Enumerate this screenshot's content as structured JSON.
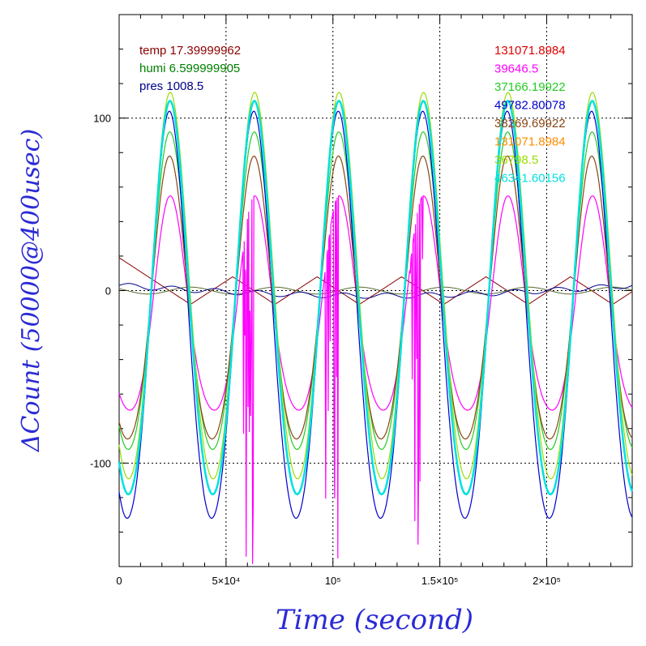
{
  "chart_data": {
    "type": "line",
    "xlabel": "Time (second)",
    "ylabel": "ΔCount (50000@400usec)",
    "xlim": [
      0,
      240000
    ],
    "ylim": [
      -160,
      160
    ],
    "grid": true,
    "x_ticks": [
      {
        "value": 0,
        "label": "0"
      },
      {
        "value": 50000,
        "label": "5×10⁴"
      },
      {
        "value": 100000,
        "label": "10⁵"
      },
      {
        "value": 150000,
        "label": "1.5×10⁵"
      },
      {
        "value": 200000,
        "label": "2×10⁵"
      }
    ],
    "y_ticks": [
      {
        "value": 100,
        "label": "100"
      },
      {
        "value": 0,
        "label": "0"
      },
      {
        "value": -100,
        "label": "-100"
      }
    ],
    "env_legend": [
      {
        "text": "temp 17.39999962",
        "color": "#8b0000"
      },
      {
        "text": "humi 6.599999905",
        "color": "#008000"
      },
      {
        "text": "pres 1008.5",
        "color": "#00008b"
      }
    ],
    "series": [
      {
        "name": "131071.8984",
        "color": "#e00000",
        "amp": 0,
        "phase": 0,
        "offset": 0,
        "noise": 0
      },
      {
        "name": "39646.5",
        "color": "#ff00ff",
        "amp": 62,
        "phase": 0.1,
        "offset": -15,
        "noise": 1
      },
      {
        "name": "37166.19922",
        "color": "#22cc22",
        "amp": 92,
        "phase": 0.05,
        "offset": -8,
        "noise": 0
      },
      {
        "name": "49782.80078",
        "color": "#0000cc",
        "amp": 118,
        "phase": 0.0,
        "offset": -22,
        "noise": 0
      },
      {
        "name": "38269.69922",
        "color": "#8b4513",
        "amp": 82,
        "phase": 0.02,
        "offset": -12,
        "noise": 0
      },
      {
        "name": "131071.8984",
        "color": "#ff8c00",
        "amp": 0,
        "phase": 0,
        "offset": 0,
        "noise": 0
      },
      {
        "name": "36798.5",
        "color": "#99dd00",
        "amp": 112,
        "phase": 0.08,
        "offset": -5,
        "noise": 0
      },
      {
        "name": "46341.60156",
        "color": "#00e0e0",
        "amp": 114,
        "phase": 0.06,
        "offset": -12,
        "noise": 0
      }
    ],
    "env_series": [
      {
        "name": "temp",
        "color": "#8b0000",
        "type": "triangle",
        "amp": 8
      },
      {
        "name": "humi",
        "color": "#556b2f",
        "type": "flat",
        "amp": 2
      },
      {
        "name": "pres",
        "color": "#00008b",
        "type": "drift",
        "amp": 6
      }
    ]
  }
}
